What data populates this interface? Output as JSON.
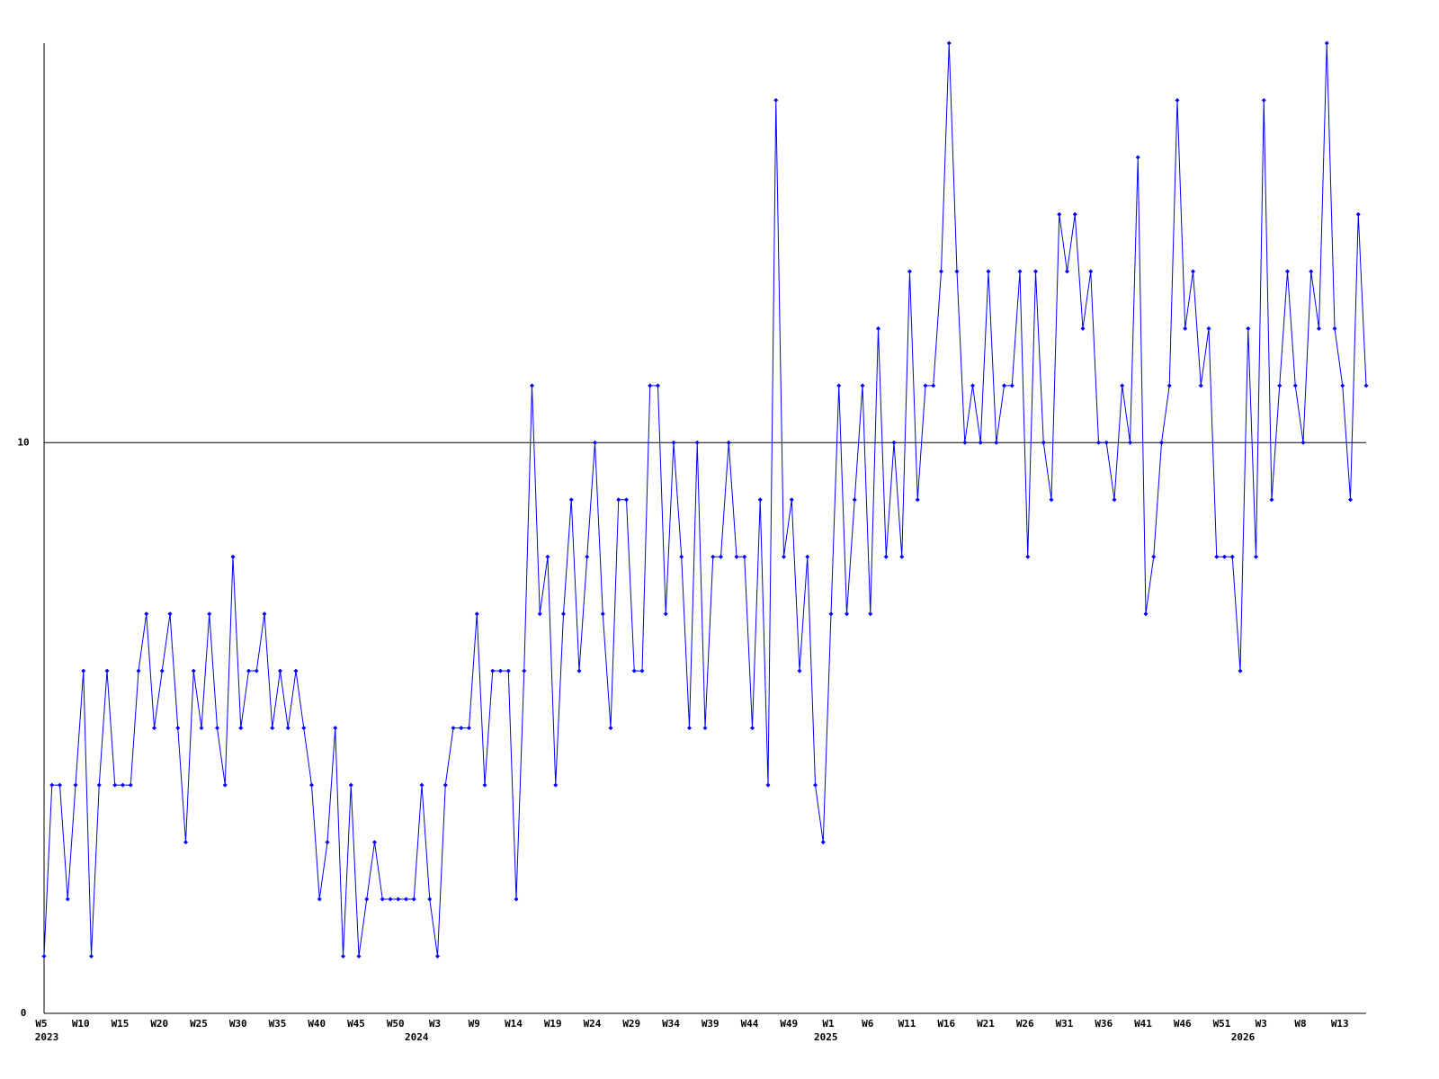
{
  "chart_data": {
    "type": "line",
    "categories": [
      "W5",
      null,
      null,
      null,
      null,
      "W10",
      null,
      null,
      null,
      null,
      "W15",
      null,
      null,
      null,
      null,
      "W20",
      null,
      null,
      null,
      null,
      "W25",
      null,
      null,
      null,
      null,
      "W30",
      null,
      null,
      null,
      null,
      "W35",
      null,
      null,
      null,
      null,
      "W40",
      null,
      null,
      null,
      null,
      "W45",
      null,
      null,
      null,
      null,
      "W50",
      null,
      null,
      null,
      null,
      "W3",
      null,
      null,
      null,
      null,
      "W9",
      null,
      null,
      null,
      null,
      "W14",
      null,
      null,
      null,
      null,
      "W19",
      null,
      null,
      null,
      null,
      "W24",
      null,
      null,
      null,
      null,
      "W29",
      null,
      null,
      null,
      null,
      "W34",
      null,
      null,
      null,
      null,
      "W39",
      null,
      null,
      null,
      null,
      "W44",
      null,
      null,
      null,
      null,
      "W49",
      null,
      null,
      null,
      null,
      "W1",
      null,
      null,
      null,
      null,
      "W6",
      null,
      null,
      null,
      null,
      "W11",
      null,
      null,
      null,
      null,
      "W16",
      null,
      null,
      null,
      null,
      "W21",
      null,
      null,
      null,
      null,
      "W26",
      null,
      null,
      null,
      null,
      "W31",
      null,
      null,
      null,
      null,
      "W36",
      null,
      null,
      null,
      null,
      "W41",
      null,
      null,
      null,
      null,
      "W46",
      null,
      null,
      null,
      null,
      "W51",
      null,
      null,
      null,
      null,
      "W3",
      null,
      null,
      null,
      null,
      "W8",
      null,
      null,
      null,
      null,
      "W13",
      null,
      null,
      null
    ],
    "year_labels": [
      "2023",
      null,
      null,
      null,
      null,
      null,
      null,
      null,
      null,
      null,
      null,
      null,
      null,
      null,
      null,
      null,
      null,
      null,
      null,
      null,
      null,
      null,
      null,
      null,
      null,
      null,
      null,
      null,
      null,
      null,
      null,
      null,
      null,
      null,
      null,
      null,
      null,
      null,
      null,
      null,
      null,
      null,
      null,
      null,
      null,
      null,
      null,
      "2024",
      null,
      null,
      null,
      null,
      null,
      null,
      null,
      null,
      null,
      null,
      null,
      null,
      null,
      null,
      null,
      null,
      null,
      null,
      null,
      null,
      null,
      null,
      null,
      null,
      null,
      null,
      null,
      null,
      null,
      null,
      null,
      null,
      null,
      null,
      null,
      null,
      null,
      null,
      null,
      null,
      null,
      null,
      null,
      null,
      null,
      null,
      null,
      null,
      null,
      null,
      null,
      "2025",
      null,
      null,
      null,
      null,
      null,
      null,
      null,
      null,
      null,
      null,
      null,
      null,
      null,
      null,
      null,
      null,
      null,
      null,
      null,
      null,
      null,
      null,
      null,
      null,
      null,
      null,
      null,
      null,
      null,
      null,
      null,
      null,
      null,
      null,
      null,
      null,
      null,
      null,
      null,
      null,
      null,
      null,
      null,
      null,
      null,
      null,
      null,
      null,
      null,
      null,
      null,
      null,
      "2026",
      null,
      null,
      null,
      null,
      null,
      null,
      null,
      null,
      null,
      null,
      null,
      null,
      null,
      null,
      null,
      null
    ],
    "values": [
      1,
      4,
      4,
      2,
      4,
      6,
      1,
      4,
      6,
      4,
      4,
      4,
      6,
      7,
      5,
      6,
      7,
      5,
      3,
      6,
      5,
      7,
      5,
      4,
      8,
      5,
      6,
      6,
      7,
      5,
      6,
      5,
      6,
      5,
      4,
      2,
      3,
      5,
      1,
      4,
      1,
      2,
      3,
      2,
      2,
      2,
      2,
      2,
      4,
      2,
      1,
      4,
      5,
      5,
      5,
      7,
      4,
      6,
      6,
      6,
      2,
      6,
      11,
      7,
      8,
      4,
      7,
      9,
      6,
      8,
      10,
      7,
      5,
      9,
      9,
      6,
      6,
      11,
      11,
      7,
      10,
      8,
      5,
      10,
      5,
      8,
      8,
      10,
      8,
      8,
      5,
      9,
      4,
      16,
      8,
      9,
      6,
      8,
      4,
      3,
      7,
      11,
      7,
      9,
      11,
      7,
      12,
      8,
      10,
      8,
      13,
      9,
      11,
      11,
      13,
      17,
      13,
      10,
      11,
      10,
      13,
      10,
      11,
      11,
      13,
      8,
      13,
      10,
      9,
      14,
      13,
      14,
      12,
      13,
      10,
      10,
      9,
      11,
      10,
      15,
      7,
      8,
      10,
      11,
      16,
      12,
      13,
      11,
      12,
      8,
      8,
      8,
      6,
      12,
      8,
      16,
      9,
      11,
      13,
      11,
      10,
      13,
      12,
      17,
      12,
      11,
      9,
      14,
      11
    ],
    "color": "#0000ff",
    "ylim": [
      0,
      17
    ],
    "yticks": [
      0,
      10
    ],
    "grid": true
  }
}
